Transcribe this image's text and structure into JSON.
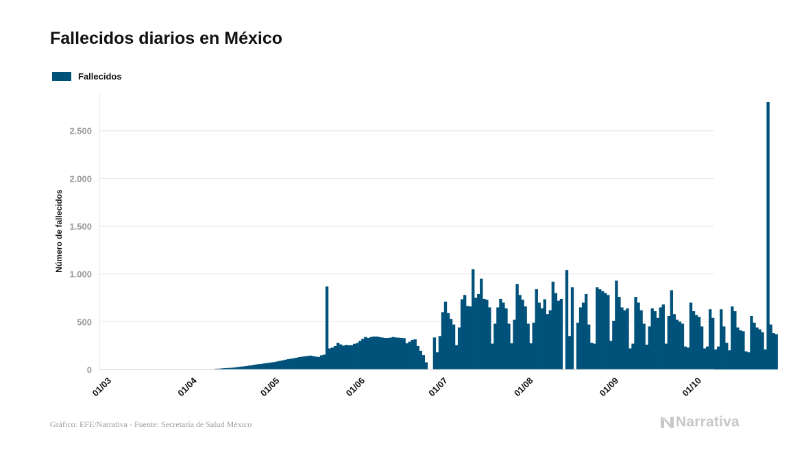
{
  "page": {
    "title": "Fallecidos diarios en México",
    "source": "Gráfico: EFE/Narrativa - Fuente: Secretaría de Salud México",
    "brand": "Narrativa"
  },
  "colors": {
    "bar": "#00527a",
    "grid": "#e6e6e6",
    "axis": "#cccccc",
    "tick_text": "#9a9a9a",
    "brand": "#c7c7c7"
  },
  "icons": {
    "brand_logo": "narrativa-n-logo-icon"
  },
  "chart_data": {
    "type": "bar",
    "legend": {
      "position": "top-left",
      "entries": [
        "Fallecidos"
      ]
    },
    "xlabel": "",
    "ylabel": "Número de fallecidos",
    "ylim": [
      0,
      2900
    ],
    "yticks": [
      0,
      500,
      1000,
      1500,
      2000,
      2500
    ],
    "ytick_labels": [
      "0",
      "500",
      "1.000",
      "1.500",
      "2.000",
      "2.500"
    ],
    "xticks": [
      "01/03",
      "01/04",
      "01/05",
      "01/06",
      "01/07",
      "01/08",
      "01/09",
      "01/10"
    ],
    "xlim": [
      "2020-02-28",
      "2020-10-08"
    ],
    "x_start": "2020-02-28",
    "grid": true,
    "series": [
      {
        "name": "Fallecidos",
        "values": [
          0,
          0,
          0,
          0,
          0,
          0,
          0,
          0,
          0,
          0,
          0,
          0,
          0,
          0,
          0,
          0,
          0,
          0,
          0,
          0,
          0,
          0,
          0,
          0,
          0,
          0,
          0,
          0,
          0,
          0,
          0,
          0,
          0,
          0,
          0,
          0,
          0,
          0,
          1,
          2,
          2,
          4,
          8,
          9,
          12,
          14,
          16,
          17,
          19,
          23,
          27,
          30,
          33,
          37,
          41,
          45,
          51,
          55,
          58,
          62,
          66,
          70,
          74,
          78,
          84,
          90,
          96,
          102,
          108,
          113,
          118,
          123,
          129,
          134,
          138,
          142,
          145,
          140,
          135,
          130,
          148,
          155,
          870,
          220,
          230,
          245,
          280,
          262,
          250,
          258,
          255,
          255,
          268,
          278,
          300,
          320,
          340,
          330,
          340,
          345,
          345,
          340,
          335,
          330,
          330,
          333,
          340,
          335,
          333,
          330,
          328,
          275,
          290,
          310,
          315,
          245,
          195,
          150,
          75,
          0,
          0,
          335,
          180,
          350,
          600,
          710,
          590,
          530,
          470,
          255,
          440,
          735,
          780,
          665,
          660,
          1050,
          750,
          790,
          950,
          740,
          730,
          650,
          270,
          480,
          650,
          740,
          700,
          640,
          480,
          275,
          520,
          895,
          780,
          730,
          660,
          480,
          275,
          490,
          840,
          700,
          640,
          735,
          580,
          620,
          920,
          800,
          720,
          740,
          0,
          1040,
          350,
          860,
          0,
          490,
          650,
          700,
          790,
          470,
          280,
          270,
          860,
          840,
          820,
          800,
          780,
          300,
          510,
          930,
          760,
          650,
          620,
          640,
          220,
          270,
          760,
          700,
          620,
          480,
          260,
          450,
          640,
          610,
          540,
          650,
          680,
          270,
          560,
          830,
          580,
          520,
          500,
          480,
          240,
          230,
          700,
          610,
          570,
          550,
          450,
          220,
          240,
          630,
          540,
          210,
          240,
          630,
          450,
          280,
          200,
          660,
          610,
          440,
          410,
          400,
          190,
          180,
          560,
          490,
          440,
          420,
          390,
          210,
          2800,
          470,
          380,
          370
        ]
      }
    ]
  }
}
